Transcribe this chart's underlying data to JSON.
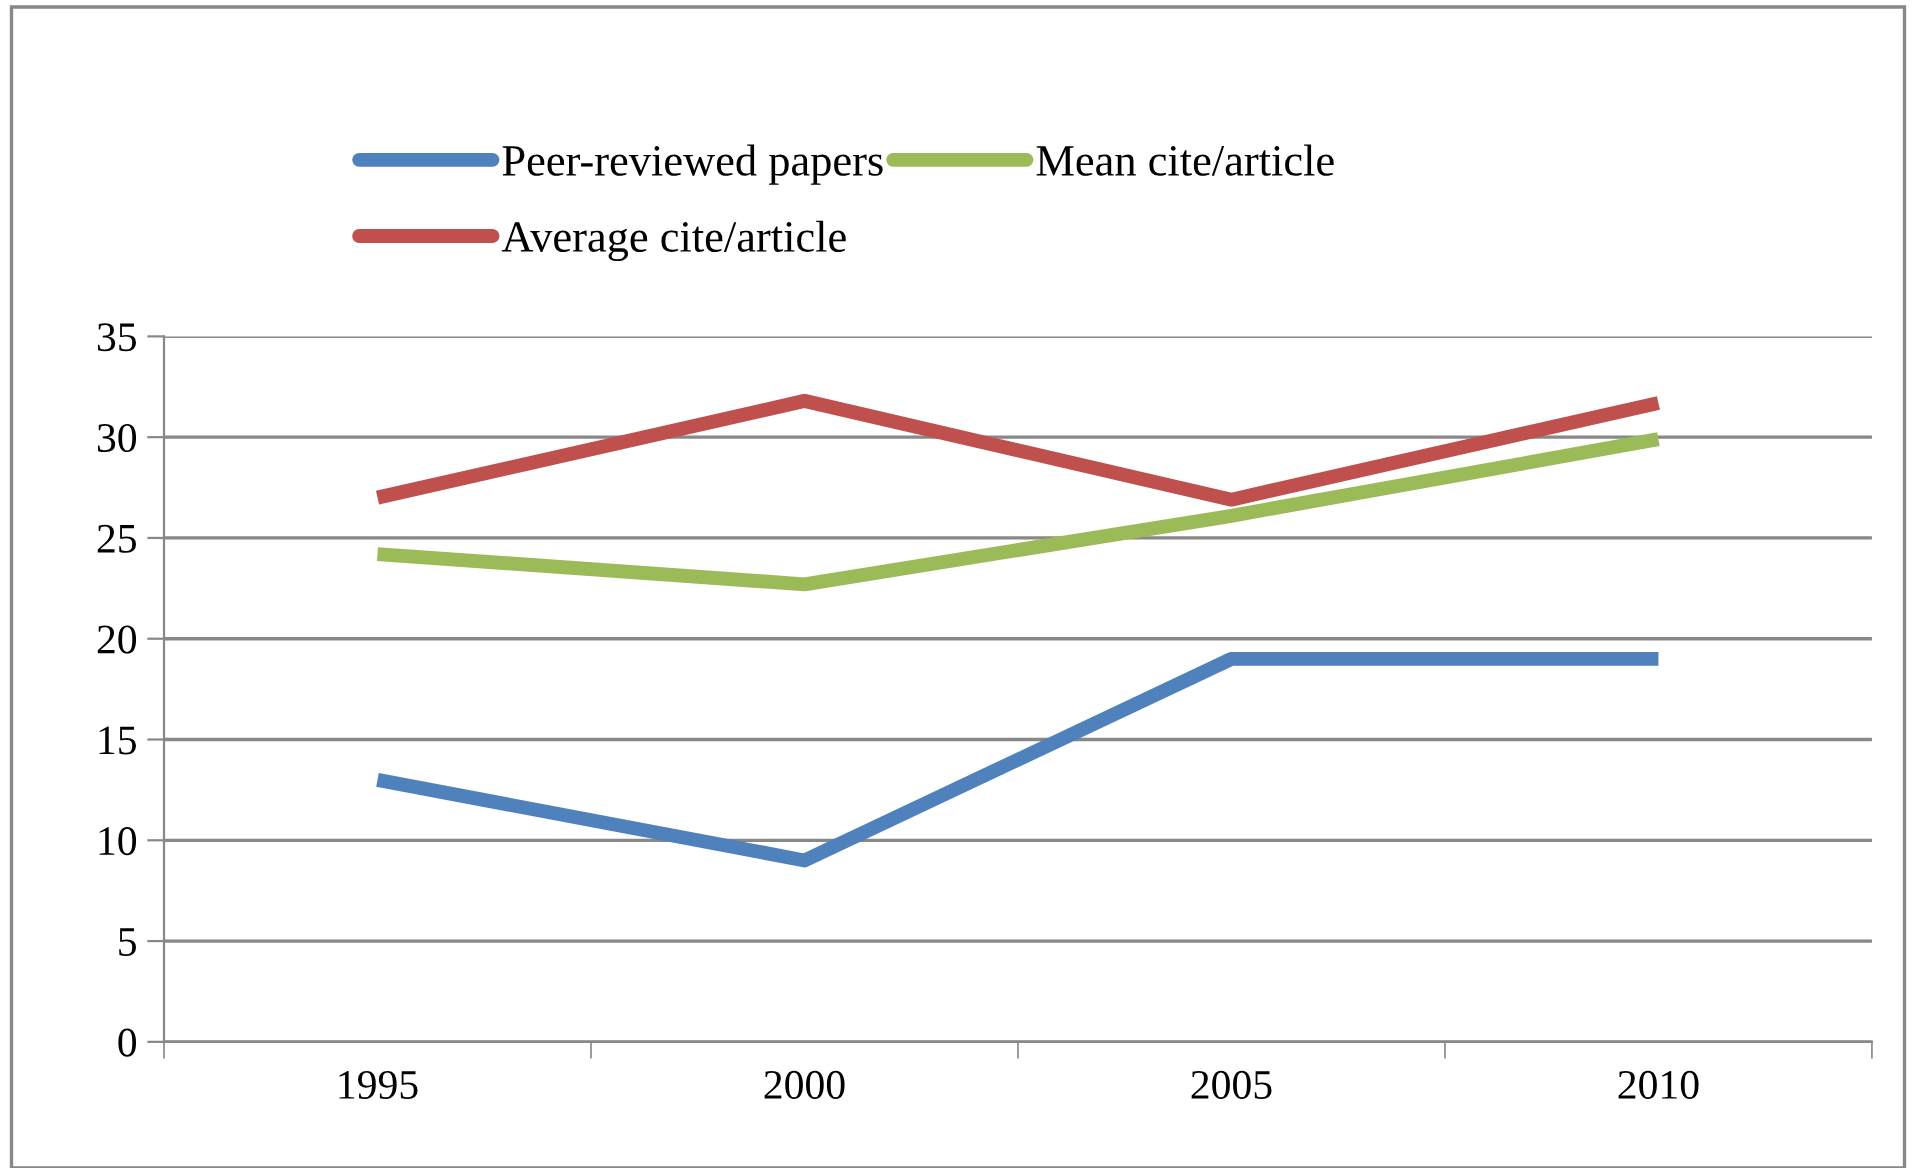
{
  "chart_data": {
    "type": "line",
    "categories": [
      "1995",
      "2000",
      "2005",
      "2010"
    ],
    "series": [
      {
        "name": "Peer-reviewed papers",
        "color": "#4f81bd",
        "values": [
          13,
          9,
          19,
          19
        ]
      },
      {
        "name": "Average cite/article",
        "color": "#c0504d",
        "values": [
          27,
          31.8,
          26.9,
          31.7
        ]
      },
      {
        "name": "Mean cite/article",
        "color": "#9bbb59",
        "values": [
          24.2,
          22.7,
          26.1,
          29.9
        ]
      }
    ],
    "ylim": [
      0,
      35
    ],
    "yticks": [
      0,
      5,
      10,
      15,
      20,
      25,
      30,
      35
    ],
    "grid": "y",
    "legend": "top",
    "marker": "none",
    "line_style": "solid"
  }
}
